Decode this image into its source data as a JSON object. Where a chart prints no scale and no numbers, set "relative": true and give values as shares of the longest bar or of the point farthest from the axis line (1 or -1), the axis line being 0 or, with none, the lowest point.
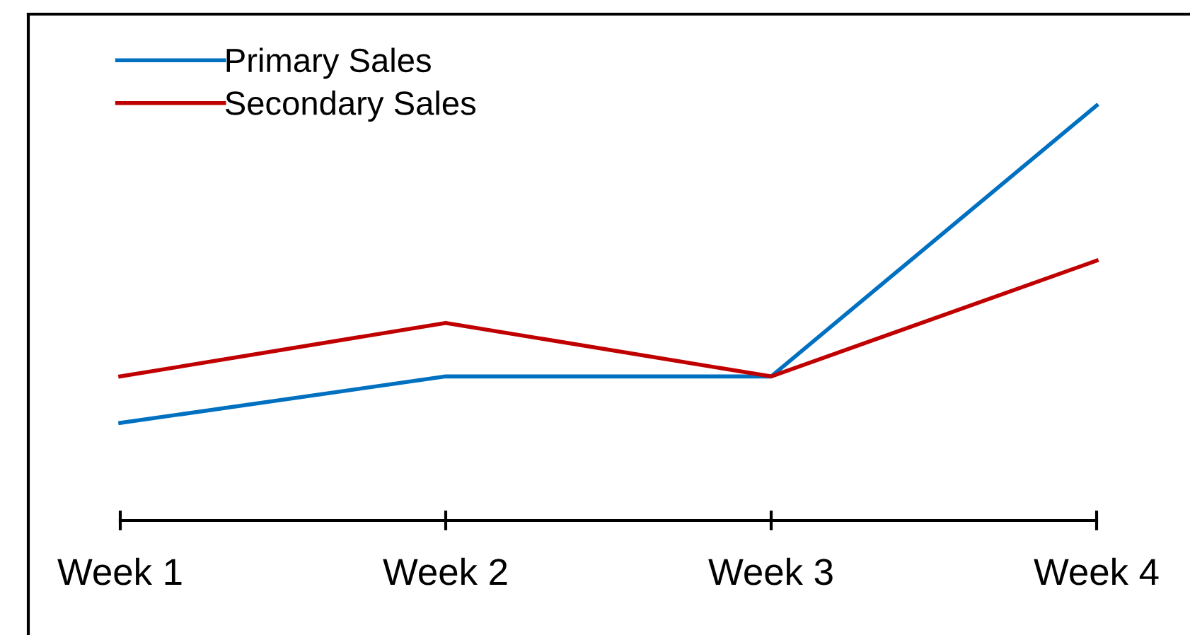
{
  "chart_data": {
    "type": "line",
    "relative": true,
    "categories": [
      "Week 1",
      "Week 2",
      "Week 3",
      "Week 4"
    ],
    "series": [
      {
        "name": "Primary Sales",
        "color": "#0070c0",
        "values": [
          0.235,
          0.347,
          0.347,
          1
        ]
      },
      {
        "name": "Secondary Sales",
        "color": "#c00000",
        "values": [
          0.347,
          0.476,
          0.347,
          0.626
        ]
      }
    ],
    "legend": "top left",
    "grid": false,
    "marker": "none",
    "line_style": "solid"
  }
}
